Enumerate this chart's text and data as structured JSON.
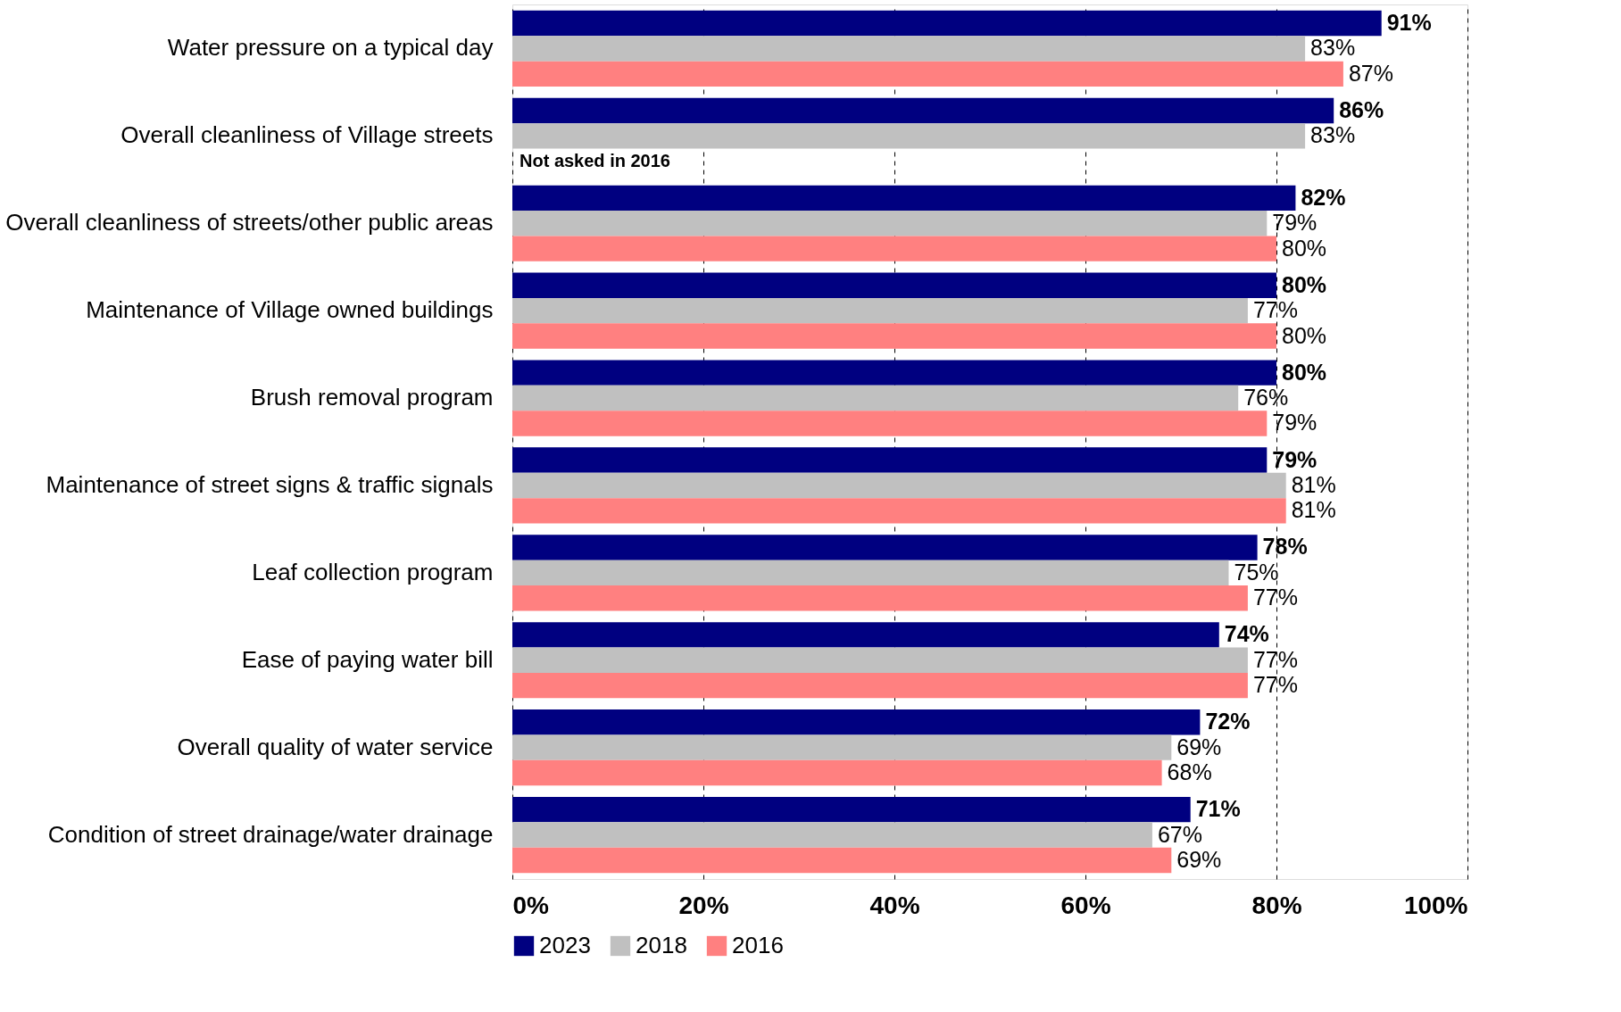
{
  "chart_data": {
    "type": "bar",
    "orientation": "horizontal",
    "categories": [
      "Water pressure on a typical day",
      "Overall cleanliness of Village streets",
      "Overall cleanliness of streets/other public areas",
      "Maintenance of Village owned buildings",
      "Brush removal program",
      "Maintenance of street signs & traffic signals",
      "Leaf collection program",
      "Ease of paying water bill",
      "Overall quality of water service",
      "Condition of street drainage/water drainage"
    ],
    "series": [
      {
        "name": "2023",
        "color": "#000080",
        "values": [
          91,
          86,
          82,
          80,
          80,
          79,
          78,
          74,
          72,
          71
        ],
        "value_labels": [
          "91%",
          "86%",
          "82%",
          "80%",
          "80%",
          "79%",
          "78%",
          "74%",
          "72%",
          "71%"
        ]
      },
      {
        "name": "2018",
        "color": "#c0c0c0",
        "values": [
          83,
          83,
          79,
          77,
          76,
          81,
          75,
          77,
          69,
          67
        ],
        "value_labels": [
          "83%",
          "83%",
          "79%",
          "77%",
          "76%",
          "81%",
          "75%",
          "77%",
          "69%",
          "67%"
        ]
      },
      {
        "name": "2016",
        "color": "#ff8080",
        "values": [
          87,
          null,
          80,
          80,
          79,
          81,
          77,
          77,
          68,
          69
        ],
        "value_labels": [
          "87%",
          null,
          "80%",
          "80%",
          "79%",
          "81%",
          "77%",
          "77%",
          "68%",
          "69%"
        ]
      }
    ],
    "xlim": [
      0,
      100
    ],
    "xticks": [
      {
        "value": 0,
        "label": "0%"
      },
      {
        "value": 20,
        "label": "20%"
      },
      {
        "value": 40,
        "label": "40%"
      },
      {
        "value": 60,
        "label": "60%"
      },
      {
        "value": 80,
        "label": "80%"
      },
      {
        "value": 100,
        "label": "100%"
      }
    ],
    "grid": "x",
    "legend": "bottom",
    "annotations": [
      {
        "text": "Not asked in 2016",
        "x": 0,
        "y": "Overall cleanliness of Village streets"
      }
    ]
  }
}
